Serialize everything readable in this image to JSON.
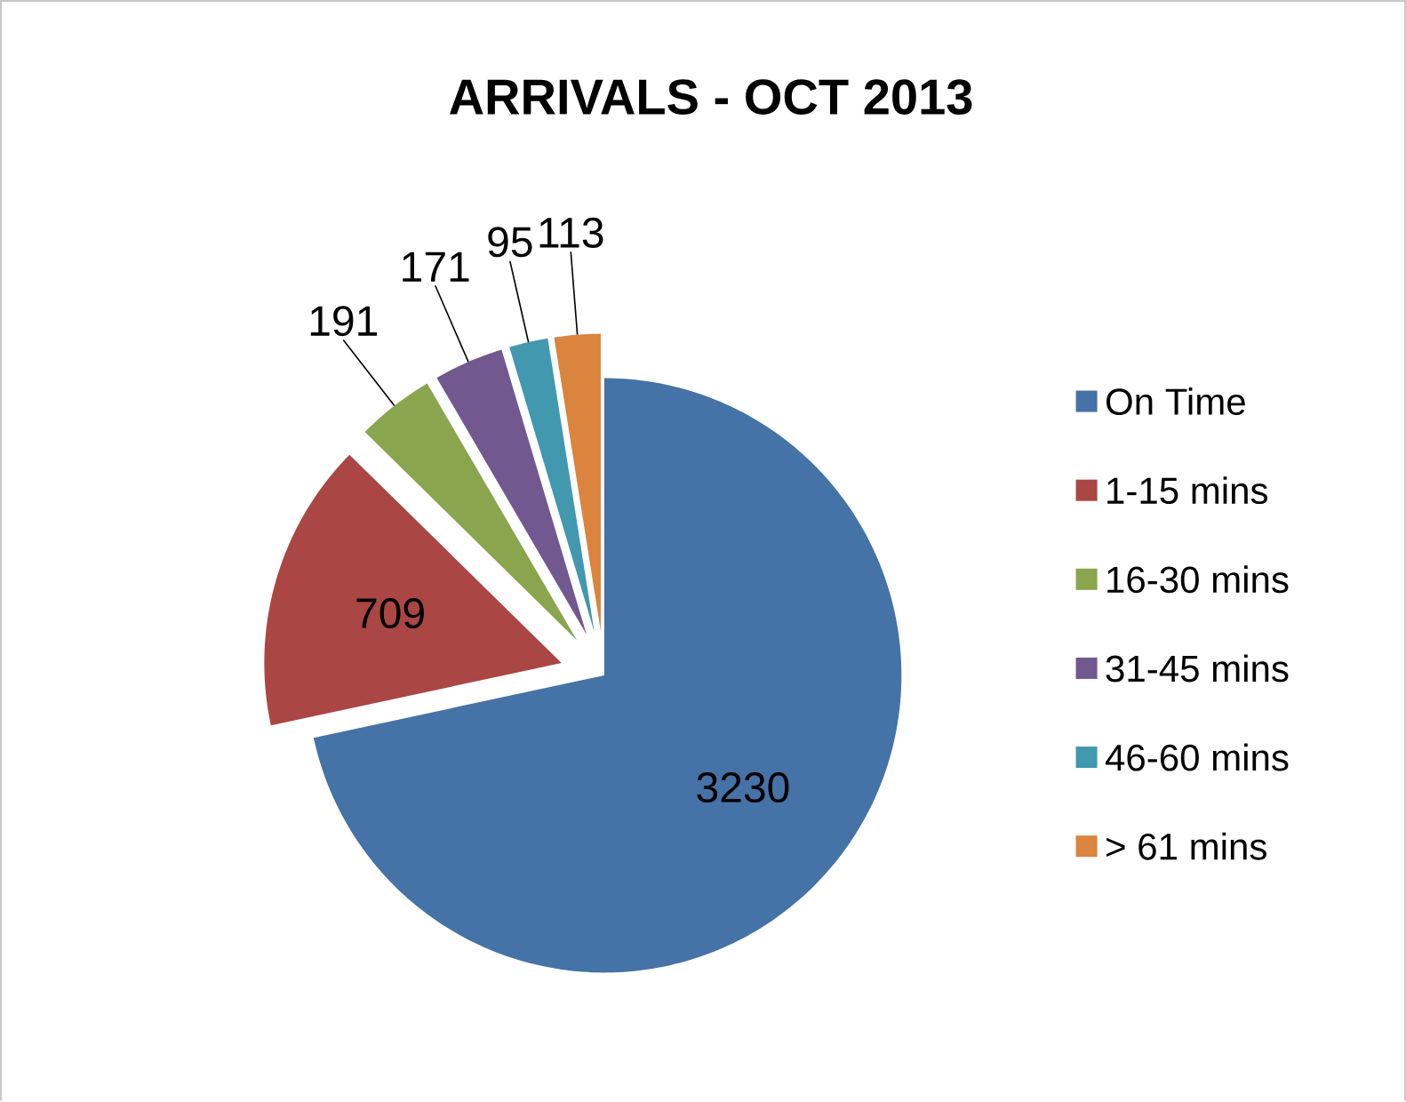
{
  "chart_data": {
    "type": "pie",
    "title": "ARRIVALS  - OCT 2013",
    "categories": [
      "On Time",
      "1-15 mins",
      "16-30 mins",
      "31-45 mins",
      "46-60 mins",
      "> 61 mins"
    ],
    "values": [
      3230,
      709,
      191,
      171,
      95,
      113
    ],
    "colors": [
      "#4572a7",
      "#aa4643",
      "#89a54e",
      "#71588f",
      "#4198af",
      "#db843d"
    ],
    "data_labels": true,
    "legend": "right"
  }
}
